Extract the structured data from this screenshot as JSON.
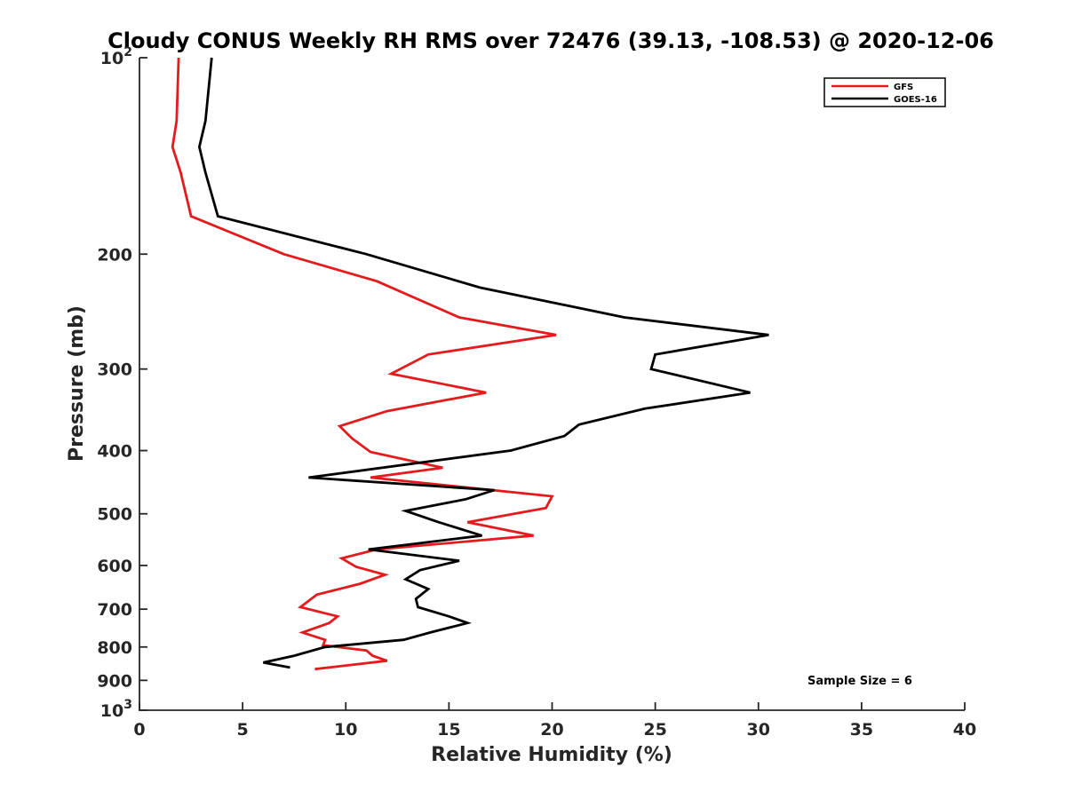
{
  "chart_data": {
    "type": "line",
    "title": "Cloudy CONUS Weekly RH RMS over 72476 (39.13, -108.53) @ 2020-12-06",
    "xlabel": "Relative Humidity (%)",
    "ylabel": "Pressure (mb)",
    "xlim": [
      0,
      40
    ],
    "ylim": [
      100,
      1000
    ],
    "y_scale": "log",
    "y_reversed": true,
    "grid": false,
    "legend_position": "top-right",
    "x_ticks": [
      0,
      5,
      10,
      15,
      20,
      25,
      30,
      35,
      40
    ],
    "y_ticks": [
      {
        "value": 100,
        "label_base": "10",
        "label_exp": "2"
      },
      {
        "value": 200,
        "label": "200"
      },
      {
        "value": 300,
        "label": "300"
      },
      {
        "value": 400,
        "label": "400"
      },
      {
        "value": 500,
        "label": "500"
      },
      {
        "value": 600,
        "label": "600"
      },
      {
        "value": 700,
        "label": "700"
      },
      {
        "value": 800,
        "label": "800"
      },
      {
        "value": 900,
        "label": "900"
      },
      {
        "value": 1000,
        "label_base": "10",
        "label_exp": "3"
      }
    ],
    "annotation": "Sample Size = 6",
    "series": [
      {
        "name": "GFS",
        "color": "#e41a1c",
        "points": [
          [
            1.9,
            100
          ],
          [
            1.8,
            125
          ],
          [
            1.6,
            137
          ],
          [
            2.0,
            150
          ],
          [
            2.5,
            175
          ],
          [
            7.0,
            200
          ],
          [
            11.5,
            220
          ],
          [
            15.5,
            250
          ],
          [
            20.2,
            266
          ],
          [
            14.0,
            285
          ],
          [
            12.2,
            305
          ],
          [
            16.8,
            326
          ],
          [
            12.0,
            348
          ],
          [
            9.7,
            367
          ],
          [
            10.3,
            383
          ],
          [
            11.2,
            402
          ],
          [
            14.7,
            425
          ],
          [
            11.2,
            440
          ],
          [
            20.0,
            470
          ],
          [
            19.7,
            490
          ],
          [
            15.9,
            515
          ],
          [
            19.1,
            540
          ],
          [
            11.5,
            567
          ],
          [
            9.8,
            585
          ],
          [
            10.5,
            603
          ],
          [
            11.9,
            620
          ],
          [
            10.7,
            640
          ],
          [
            8.6,
            665
          ],
          [
            7.8,
            695
          ],
          [
            9.6,
            718
          ],
          [
            9.2,
            735
          ],
          [
            7.9,
            760
          ],
          [
            9.0,
            780
          ],
          [
            8.9,
            795
          ],
          [
            11.0,
            810
          ],
          [
            11.3,
            825
          ],
          [
            12.0,
            840
          ],
          [
            8.5,
            865
          ]
        ]
      },
      {
        "name": "GOES-16",
        "color": "#000000",
        "points": [
          [
            3.5,
            100
          ],
          [
            3.2,
            125
          ],
          [
            2.9,
            137
          ],
          [
            3.2,
            150
          ],
          [
            3.8,
            175
          ],
          [
            11.0,
            200
          ],
          [
            16.5,
            225
          ],
          [
            23.5,
            250
          ],
          [
            30.5,
            266
          ],
          [
            25.0,
            285
          ],
          [
            24.8,
            300
          ],
          [
            29.6,
            326
          ],
          [
            24.5,
            345
          ],
          [
            21.3,
            365
          ],
          [
            20.6,
            380
          ],
          [
            18.0,
            400
          ],
          [
            8.2,
            440
          ],
          [
            17.2,
            460
          ],
          [
            15.8,
            475
          ],
          [
            12.9,
            495
          ],
          [
            14.5,
            515
          ],
          [
            16.6,
            540
          ],
          [
            11.1,
            567
          ],
          [
            15.5,
            590
          ],
          [
            13.6,
            610
          ],
          [
            12.9,
            630
          ],
          [
            14.0,
            652
          ],
          [
            13.4,
            675
          ],
          [
            13.5,
            695
          ],
          [
            15.0,
            718
          ],
          [
            15.9,
            735
          ],
          [
            14.1,
            760
          ],
          [
            12.8,
            780
          ],
          [
            9.0,
            800
          ],
          [
            7.5,
            825
          ],
          [
            6.0,
            845
          ],
          [
            7.3,
            860
          ]
        ]
      }
    ]
  }
}
